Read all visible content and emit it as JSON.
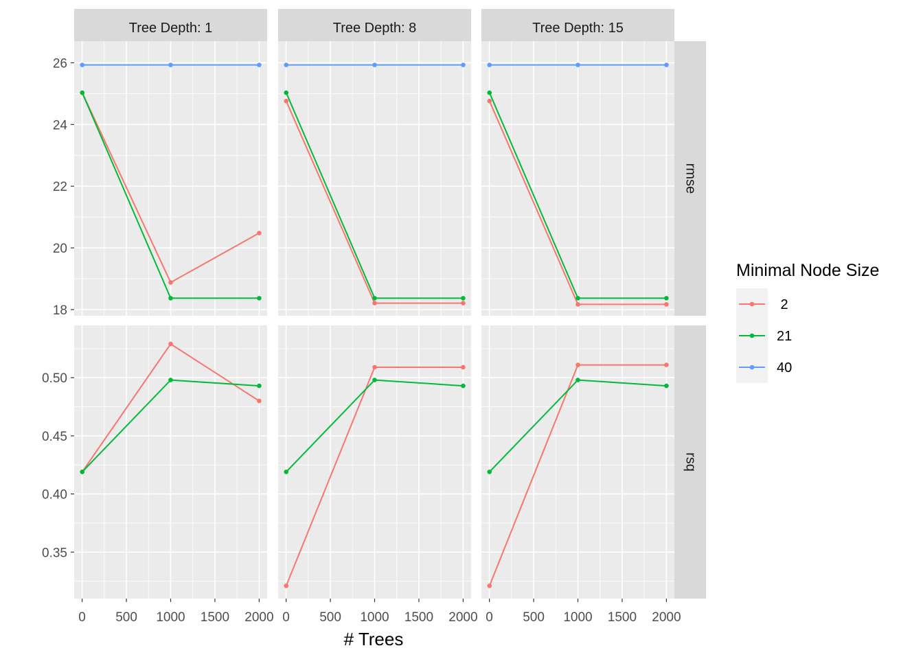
{
  "chart_data": {
    "type": "line",
    "xlabel": "# Trees",
    "x_ticks": [
      0,
      500,
      1000,
      1500,
      2000
    ],
    "xlim": [
      -90,
      2090
    ],
    "col_facets": [
      "Tree Depth: 1",
      "Tree Depth: 8",
      "Tree Depth: 15"
    ],
    "row_facets": [
      {
        "label": "rmse",
        "ylim": [
          17.8,
          26.7
        ],
        "y_ticks": [
          18,
          20,
          22,
          24,
          26
        ],
        "y_tick_labels": [
          "18",
          "20",
          "22",
          "24",
          "26"
        ]
      },
      {
        "label": "rsq",
        "ylim": [
          0.31,
          0.545
        ],
        "y_ticks": [
          0.35,
          0.4,
          0.45,
          0.5
        ],
        "y_tick_labels": [
          "0.35",
          "0.40",
          "0.45",
          "0.50"
        ]
      }
    ],
    "x": [
      1,
      1000,
      2000
    ],
    "legend": {
      "title": "Minimal Node Size",
      "entries": [
        {
          "label": " 2",
          "color": "#F8766D"
        },
        {
          "label": "21",
          "color": "#00BA38"
        },
        {
          "label": "40",
          "color": "#619CFF"
        }
      ],
      "position": "right"
    },
    "grid": true,
    "panels": [
      {
        "col": 0,
        "row": 0,
        "series": [
          {
            "name": "40",
            "values": [
              25.93,
              25.93,
              25.93
            ]
          },
          {
            "name": "2",
            "values": [
              25.03,
              18.88,
              20.48
            ]
          },
          {
            "name": "21",
            "values": [
              25.03,
              18.37,
              18.37
            ]
          }
        ]
      },
      {
        "col": 1,
        "row": 0,
        "series": [
          {
            "name": "40",
            "values": [
              25.93,
              25.93,
              25.93
            ]
          },
          {
            "name": "2",
            "values": [
              24.76,
              18.21,
              18.21
            ]
          },
          {
            "name": "21",
            "values": [
              25.03,
              18.37,
              18.37
            ]
          }
        ]
      },
      {
        "col": 2,
        "row": 0,
        "series": [
          {
            "name": "40",
            "values": [
              25.93,
              25.93,
              25.93
            ]
          },
          {
            "name": "2",
            "values": [
              24.76,
              18.17,
              18.17
            ]
          },
          {
            "name": "21",
            "values": [
              25.03,
              18.37,
              18.37
            ]
          }
        ]
      },
      {
        "col": 0,
        "row": 1,
        "series": [
          {
            "name": "2",
            "values": [
              0.419,
              0.529,
              0.48
            ]
          },
          {
            "name": "21",
            "values": [
              0.419,
              0.498,
              0.493
            ]
          }
        ]
      },
      {
        "col": 1,
        "row": 1,
        "series": [
          {
            "name": "2",
            "values": [
              0.321,
              0.509,
              0.509
            ]
          },
          {
            "name": "21",
            "values": [
              0.419,
              0.498,
              0.493
            ]
          }
        ]
      },
      {
        "col": 2,
        "row": 1,
        "series": [
          {
            "name": "2",
            "values": [
              0.321,
              0.511,
              0.511
            ]
          },
          {
            "name": "21",
            "values": [
              0.419,
              0.498,
              0.493
            ]
          }
        ]
      }
    ]
  }
}
